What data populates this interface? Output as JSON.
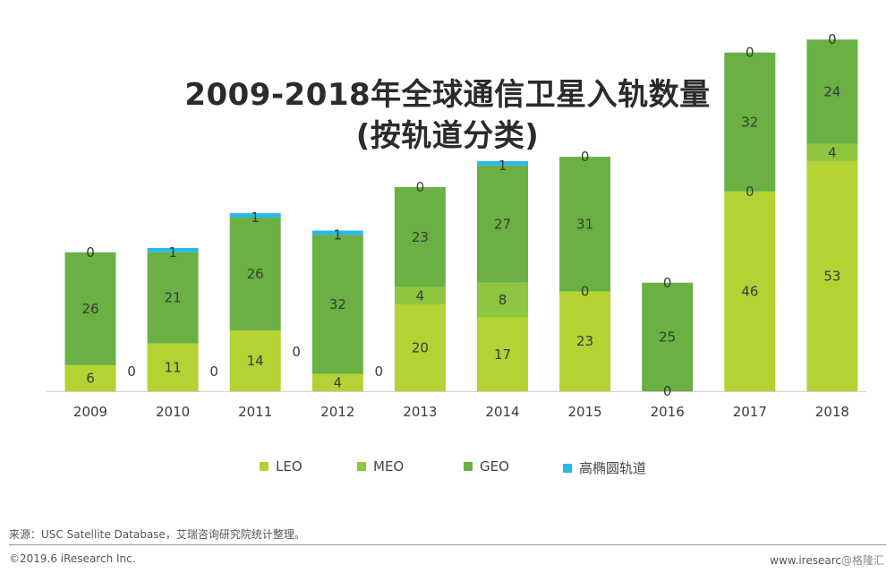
{
  "title_line1": "2009-2018年全球通信卫星入轨数量",
  "title_line2": "(按轨道分类)",
  "source": "来源：USC Satellite Database，艾瑞咨询研究院统计整理。",
  "footer_left": "©2019.6 iResearch Inc.",
  "footer_right_site": "www.iresearc",
  "footer_right_watermark": "@格隆汇",
  "colors": {
    "LEO": "#b4d233",
    "MEO": "#8ec63f",
    "GEO": "#6ab043",
    "HEO": "#29b9e8"
  },
  "chart_data": {
    "type": "bar",
    "stacked": true,
    "categories": [
      "2009",
      "2010",
      "2011",
      "2012",
      "2013",
      "2014",
      "2015",
      "2016",
      "2017",
      "2018"
    ],
    "series": [
      {
        "name": "LEO",
        "values": [
          6,
          11,
          14,
          4,
          20,
          17,
          23,
          0,
          46,
          53
        ]
      },
      {
        "name": "MEO",
        "values": [
          0,
          0,
          0,
          0,
          4,
          8,
          0,
          0,
          0,
          4
        ]
      },
      {
        "name": "GEO",
        "values": [
          26,
          21,
          26,
          32,
          23,
          27,
          31,
          25,
          32,
          24
        ]
      },
      {
        "name": "高椭圆轨道",
        "values": [
          0,
          1,
          1,
          1,
          0,
          1,
          0,
          0,
          0,
          0
        ]
      }
    ],
    "side_labels": [
      "0",
      "0",
      "0",
      "0"
    ],
    "legend": [
      "LEO",
      "MEO",
      "GEO",
      "高椭圆轨道"
    ],
    "legend_position": "bottom",
    "grid": false
  }
}
